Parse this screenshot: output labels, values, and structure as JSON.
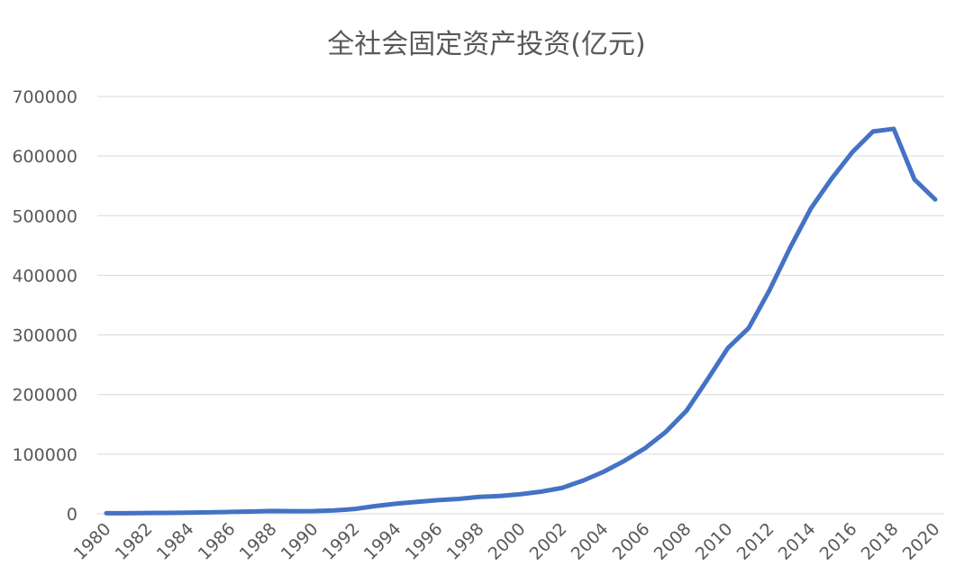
{
  "chart_data": {
    "type": "line",
    "title": "全社会固定资产投资(亿元)",
    "xlabel": "",
    "ylabel": "",
    "ylim": [
      0,
      700000
    ],
    "y_ticks": [
      0,
      100000,
      200000,
      300000,
      400000,
      500000,
      600000,
      700000
    ],
    "x_ticks": [
      "1980",
      "1982",
      "1984",
      "1986",
      "1988",
      "1990",
      "1992",
      "1994",
      "1996",
      "1998",
      "2000",
      "2002",
      "2004",
      "2006",
      "2008",
      "2010",
      "2012",
      "2014",
      "2016",
      "2018",
      "2020"
    ],
    "grid": true,
    "legend": "none",
    "x": [
      1980,
      1981,
      1982,
      1983,
      1984,
      1985,
      1986,
      1987,
      1988,
      1989,
      1990,
      1991,
      1992,
      1993,
      1994,
      1995,
      1996,
      1997,
      1998,
      1999,
      2000,
      2001,
      2002,
      2003,
      2004,
      2005,
      2006,
      2007,
      2008,
      2009,
      2010,
      2011,
      2012,
      2013,
      2014,
      2015,
      2016,
      2017,
      2018,
      2019,
      2020
    ],
    "series": [
      {
        "color": "#4472c4",
        "values": [
          910,
          961,
          1230,
          1430,
          1833,
          2543,
          3121,
          3792,
          4754,
          4410,
          4517,
          5595,
          8080,
          13072,
          17042,
          20019,
          22914,
          24941,
          28406,
          29855,
          32918,
          37214,
          43500,
          55567,
          70477,
          88774,
          109998,
          137324,
          172828,
          224599,
          278122,
          311485,
          374695,
          446294,
          512021,
          561999,
          606466,
          641238,
          645675,
          560874,
          527270
        ]
      }
    ],
    "colors": {
      "series": "#4472c4",
      "grid": "#d9d9d9",
      "text": "#595959"
    }
  }
}
